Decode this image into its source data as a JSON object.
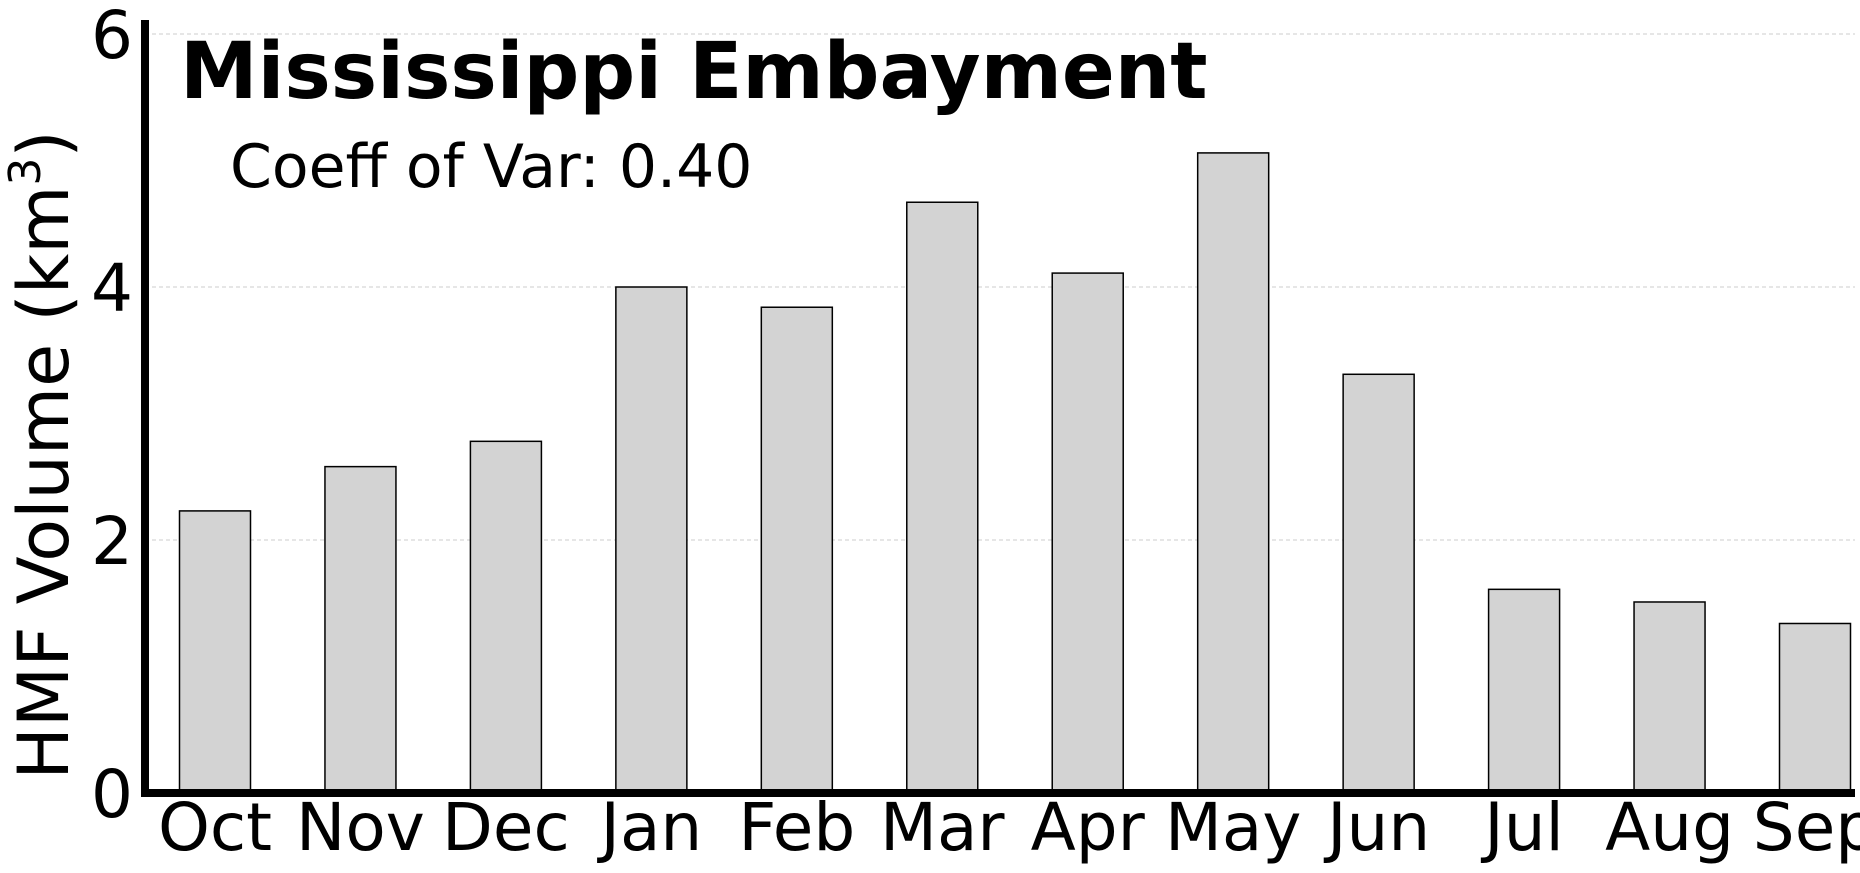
{
  "chart_data": {
    "type": "bar",
    "title": "Mississippi Embayment",
    "subtitle": "Coeff of Var: 0.40",
    "ylabel": "HMF Volume (km",
    "ylabel_superscript": "3",
    "ylabel_suffix": ")",
    "xlabel": "",
    "categories": [
      "Oct",
      "Nov",
      "Dec",
      "Jan",
      "Feb",
      "Mar",
      "Apr",
      "May",
      "Jun",
      "Jul",
      "Aug",
      "Sep"
    ],
    "values": [
      2.23,
      2.58,
      2.78,
      4.0,
      3.84,
      4.67,
      4.11,
      5.06,
      3.31,
      1.61,
      1.51,
      1.34
    ],
    "ylim": [
      0,
      6.1
    ],
    "yticks": [
      "0",
      "2",
      "4",
      "6"
    ],
    "grid": "horizontal dashed",
    "bar_color": "#d3d3d3",
    "bar_edge_color": "#000000",
    "grid_color": "#cccccc"
  }
}
